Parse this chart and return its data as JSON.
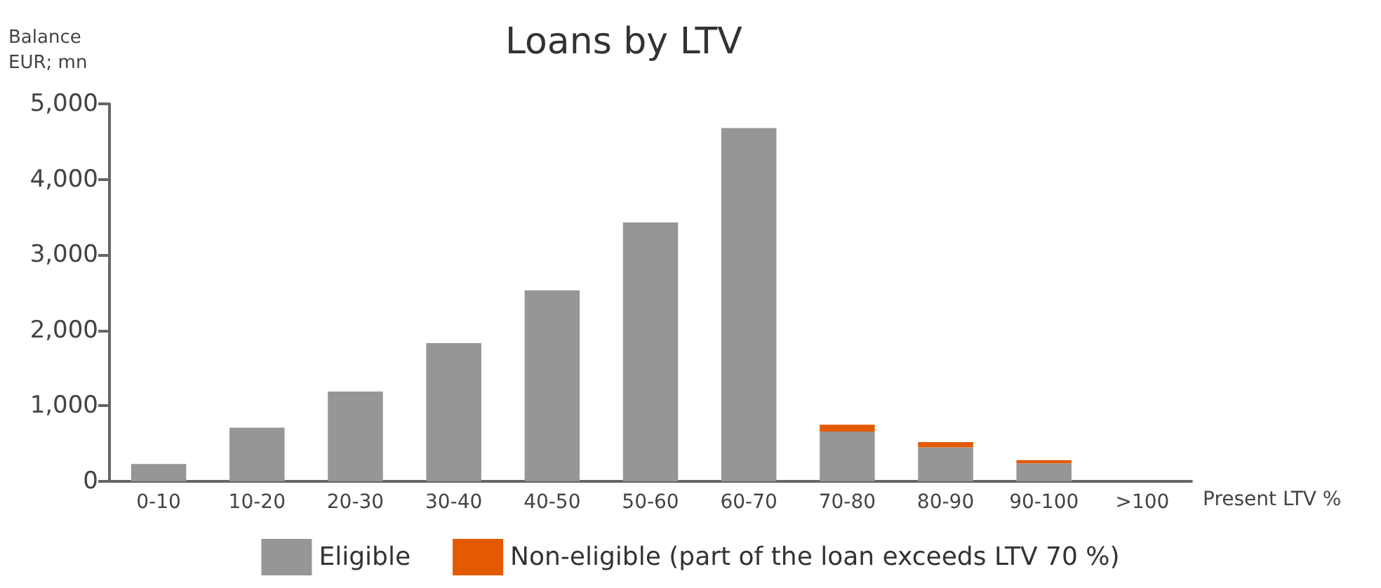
{
  "chart_data": {
    "type": "bar",
    "title": "Loans by LTV",
    "ylabel": "Balance\nEUR; mn",
    "xlabel": "Present LTV %",
    "categories": [
      "0-10",
      "10-20",
      "20-30",
      "30-40",
      "40-50",
      "50-60",
      "60-70",
      "70-80",
      "80-90",
      "90-100",
      ">100"
    ],
    "series": [
      {
        "name": "Eligible",
        "color": "#969696",
        "values": [
          230,
          710,
          1190,
          1830,
          2530,
          3430,
          4680,
          660,
          450,
          240,
          0
        ]
      },
      {
        "name": "Non-eligible (part of the loan exceeds LTV 70 %)",
        "color": "#e35a00",
        "values": [
          0,
          0,
          0,
          0,
          0,
          0,
          0,
          90,
          70,
          40,
          0
        ]
      }
    ],
    "stacked": true,
    "ylim": [
      0,
      5000
    ],
    "yticks": [
      0,
      {
        "value": 1000,
        "label": "1,000"
      },
      {
        "value": 2000,
        "label": "2,000"
      },
      {
        "value": 3000,
        "label": "3,000"
      },
      {
        "value": 4000,
        "label": "4,000"
      },
      {
        "value": 5000,
        "label": "5,000"
      }
    ],
    "grid": false,
    "legend": "bottom"
  }
}
